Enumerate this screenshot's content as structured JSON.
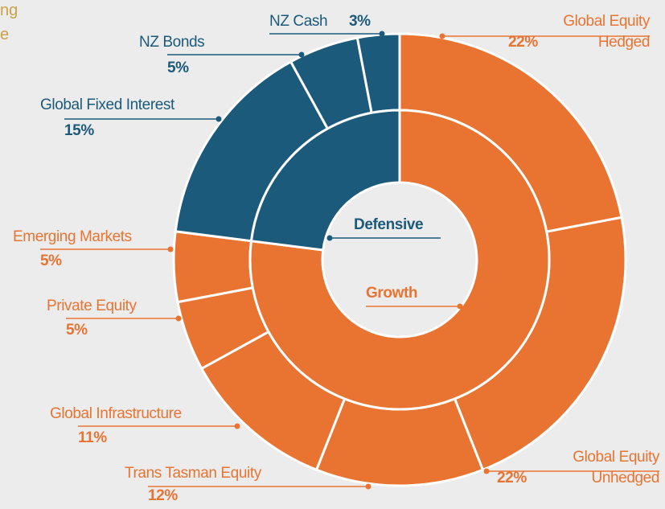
{
  "corner_text": [
    "ng",
    "e"
  ],
  "chart_data": {
    "type": "sunburst",
    "inner": {
      "categories": [
        "Growth",
        "Defensive"
      ],
      "values": [
        77,
        23
      ],
      "colors": [
        "#e97432",
        "#1b5a7b"
      ]
    },
    "outer": {
      "categories": [
        "Global Equity Hedged",
        "Global Equity Unhedged",
        "Trans Tasman Equity",
        "Global Infrastructure",
        "Private Equity",
        "Emerging Markets",
        "Global Fixed Interest",
        "NZ Bonds",
        "NZ Cash"
      ],
      "values": [
        22,
        22,
        12,
        11,
        5,
        5,
        15,
        5,
        3
      ],
      "value_labels": [
        "22%",
        "22%",
        "12%",
        "11%",
        "5%",
        "5%",
        "15%",
        "5%",
        "3%"
      ],
      "colors": [
        "#e97432",
        "#e97432",
        "#e97432",
        "#e97432",
        "#e97432",
        "#e97432",
        "#1b5a7b",
        "#1b5a7b",
        "#1b5a7b"
      ]
    }
  }
}
